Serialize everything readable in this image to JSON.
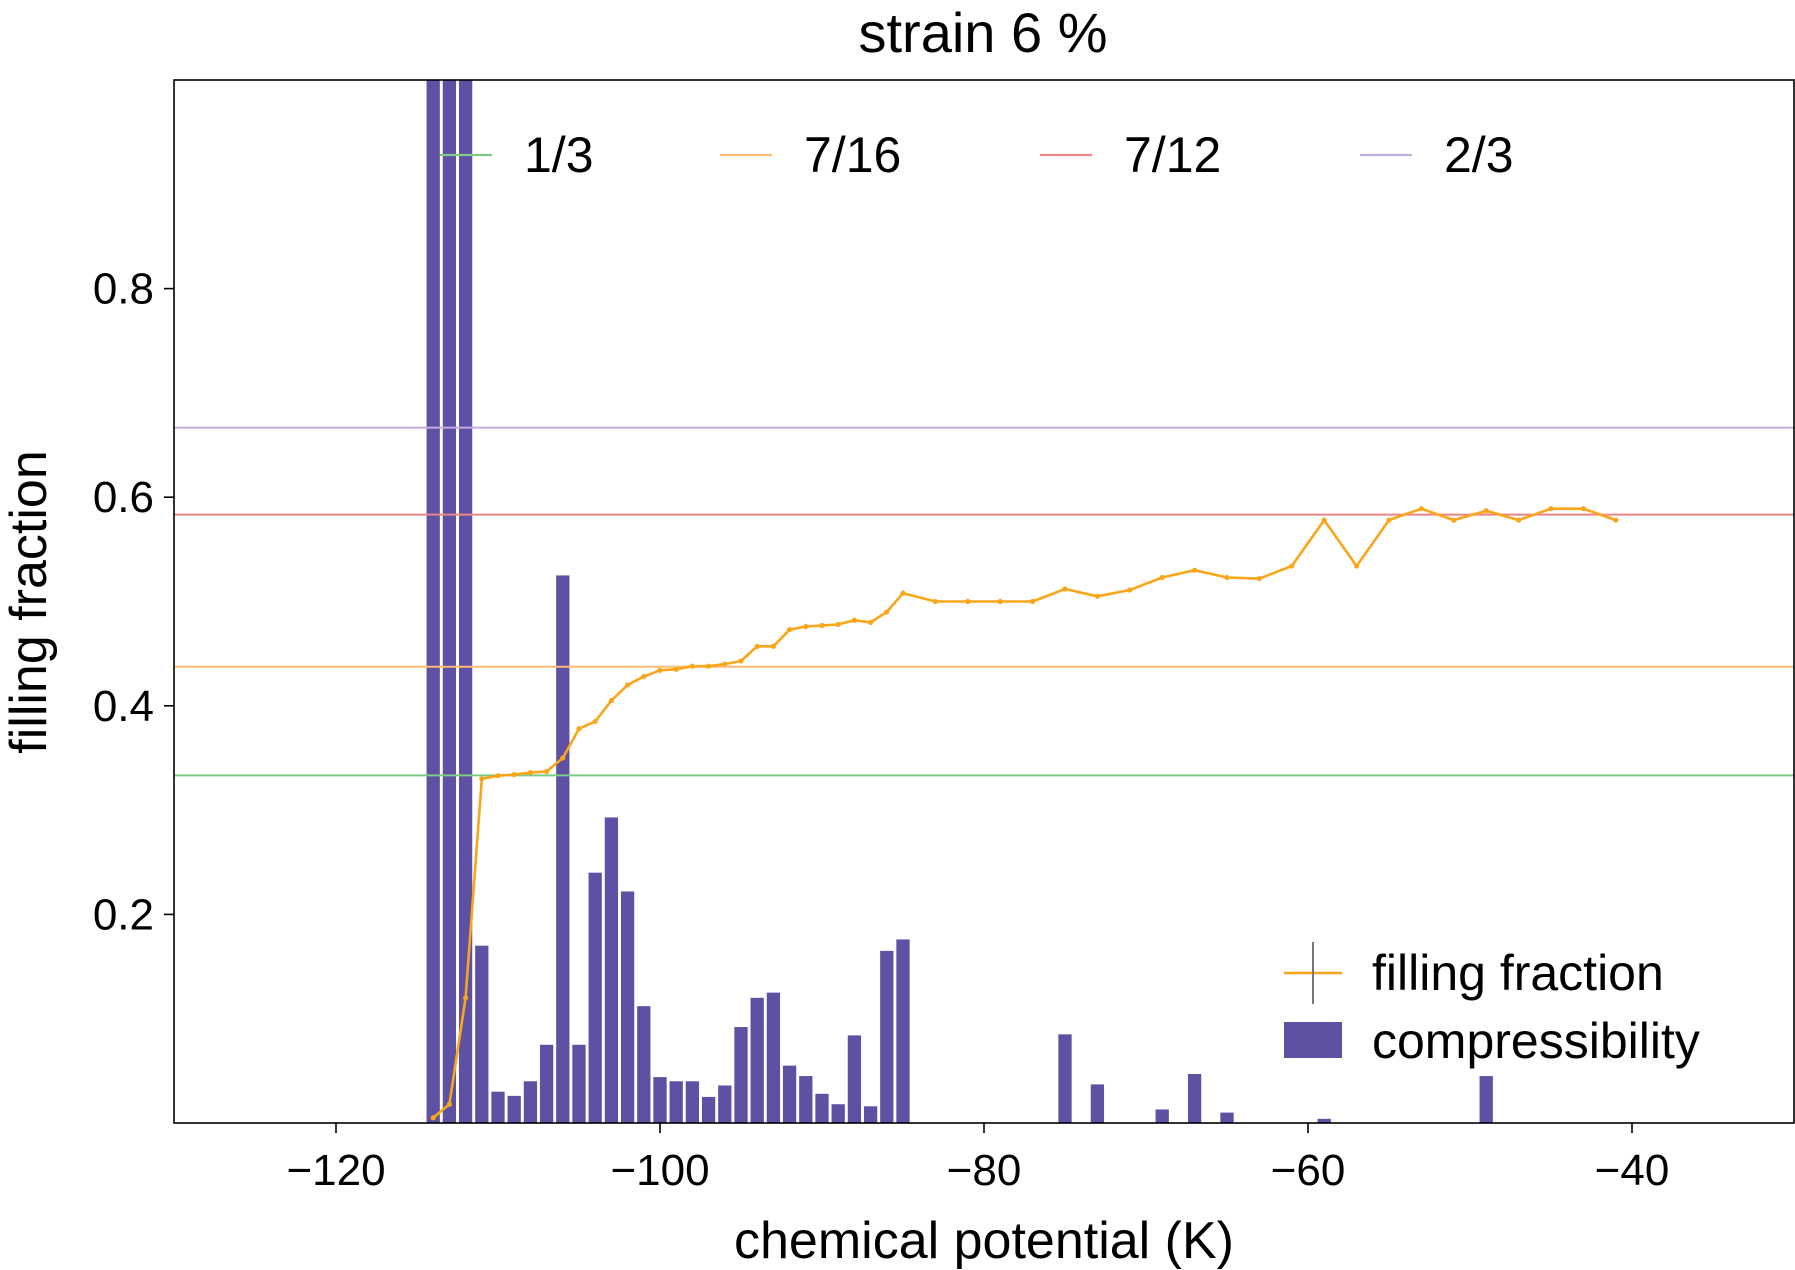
{
  "chart_data": {
    "type": "bar",
    "title": "strain 6 %",
    "xlabel": "chemical potential (K)",
    "ylabel": "filling fraction",
    "xlim": [
      -130,
      -30
    ],
    "ylim": [
      0.0,
      1.0
    ],
    "x_ticks": [
      -120,
      -100,
      -80,
      -60,
      -40
    ],
    "x_tick_labels": [
      "−120",
      "−100",
      "−80",
      "−60",
      "−40"
    ],
    "y_ticks": [
      0.2,
      0.4,
      0.6,
      0.8
    ],
    "y_tick_labels": [
      "0.2",
      "0.4",
      "0.6",
      "0.8"
    ],
    "reference_lines": [
      {
        "name": "1/3",
        "value": 0.3333,
        "color": "#7ccc84"
      },
      {
        "name": "7/16",
        "value": 0.4375,
        "color": "#fdbb74"
      },
      {
        "name": "7/12",
        "value": 0.5833,
        "color": "#ec8586"
      },
      {
        "name": "2/3",
        "value": 0.6667,
        "color": "#c1aede"
      }
    ],
    "series": [
      {
        "name": "filling fraction",
        "type": "line",
        "color": "#f9a61a",
        "x": [
          -114,
          -113,
          -112,
          -111,
          -110,
          -109,
          -108,
          -107,
          -106,
          -105,
          -104,
          -103,
          -102,
          -101,
          -100,
          -99,
          -98,
          -97,
          -96,
          -95,
          -94,
          -93,
          -92,
          -91,
          -90,
          -89,
          -88,
          -87,
          -86,
          -85,
          -83,
          -81,
          -79,
          -77,
          -75,
          -73,
          -71,
          -69,
          -67,
          -65,
          -63,
          -61,
          -59,
          -57,
          -55,
          -53,
          -51,
          -49,
          -47,
          -45,
          -43,
          -41
        ],
        "values": [
          0.005,
          0.018,
          0.12,
          0.33,
          0.333,
          0.334,
          0.336,
          0.337,
          0.35,
          0.378,
          0.385,
          0.405,
          0.42,
          0.428,
          0.434,
          0.435,
          0.438,
          0.438,
          0.44,
          0.443,
          0.457,
          0.457,
          0.473,
          0.476,
          0.477,
          0.478,
          0.482,
          0.48,
          0.49,
          0.508,
          0.5,
          0.5,
          0.5,
          0.5,
          0.512,
          0.505,
          0.511,
          0.523,
          0.53,
          0.523,
          0.522,
          0.534,
          0.578,
          0.534,
          0.578,
          0.589,
          0.578,
          0.587,
          0.578,
          0.589,
          0.589,
          0.578
        ]
      },
      {
        "name": "compressibility",
        "type": "bar",
        "color": "#5e50a2",
        "x": [
          -114,
          -113,
          -112,
          -111,
          -110,
          -109,
          -108,
          -107,
          -106,
          -105,
          -104,
          -103,
          -102,
          -101,
          -100,
          -99,
          -98,
          -97,
          -96,
          -95,
          -94,
          -93,
          -92,
          -91,
          -90,
          -89,
          -88,
          -87,
          -86,
          -85,
          -75,
          -73,
          -69,
          -67,
          -65,
          -59,
          -49
        ],
        "values": [
          1.0,
          1.0,
          1.0,
          0.17,
          0.03,
          0.026,
          0.04,
          0.075,
          0.525,
          0.075,
          0.24,
          0.293,
          0.222,
          0.112,
          0.044,
          0.04,
          0.04,
          0.025,
          0.036,
          0.092,
          0.12,
          0.125,
          0.055,
          0.045,
          0.028,
          0.018,
          0.084,
          0.016,
          0.165,
          0.176,
          0.085,
          0.037,
          0.013,
          0.047,
          0.01,
          0.004,
          0.045
        ]
      }
    ],
    "top_legend": [
      "1/3",
      "7/16",
      "7/12",
      "2/3"
    ],
    "bottom_legend": [
      "filling fraction",
      "compressibility"
    ],
    "grid": false,
    "legend_placement": [
      "upper-center",
      "lower-right"
    ]
  }
}
